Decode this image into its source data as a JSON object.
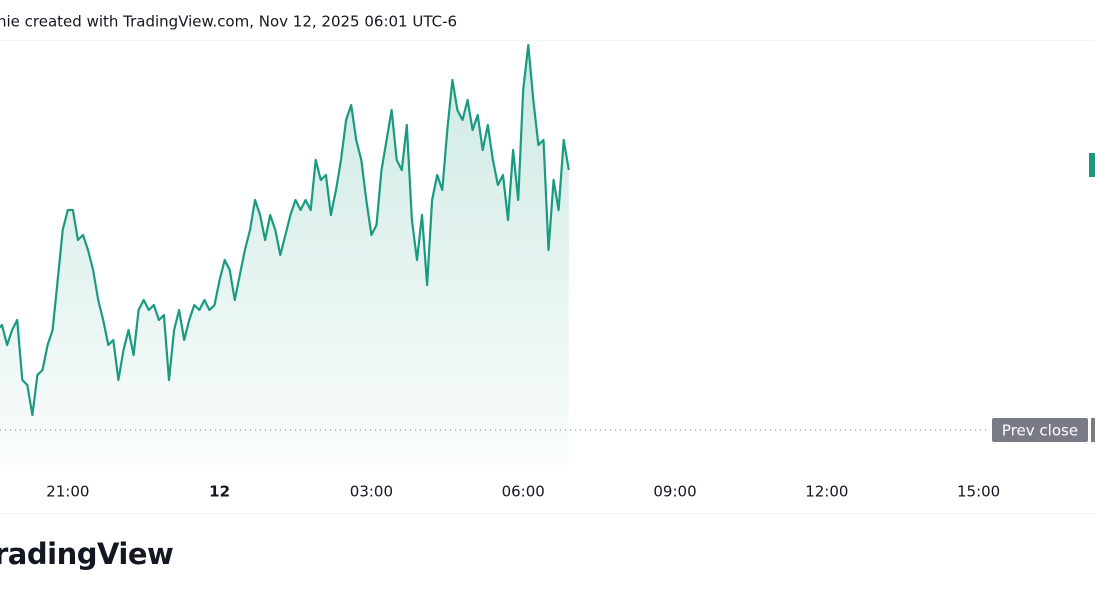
{
  "header": {
    "title": "nie created with TradingView.com, Nov 12, 2025 06:01 UTC-6"
  },
  "footer": {
    "logo": "radingView"
  },
  "chart_data": {
    "type": "area",
    "color": "#1a9a80",
    "x": [
      19.6,
      19.7,
      19.8,
      19.9,
      20.0,
      20.1,
      20.2,
      20.3,
      20.4,
      20.5,
      20.6,
      20.7,
      20.8,
      20.9,
      21.0,
      21.1,
      21.2,
      21.3,
      21.4,
      21.5,
      21.6,
      21.7,
      21.8,
      21.9,
      22.0,
      22.1,
      22.2,
      22.3,
      22.4,
      22.5,
      22.6,
      22.7,
      22.8,
      22.9,
      23.0,
      23.1,
      23.2,
      23.3,
      23.4,
      23.5,
      23.6,
      23.7,
      23.8,
      23.9,
      24.0,
      24.1,
      24.2,
      24.3,
      24.4,
      24.5,
      24.6,
      24.7,
      24.8,
      24.9,
      25.0,
      25.1,
      25.2,
      25.3,
      25.4,
      25.5,
      25.6,
      25.7,
      25.8,
      25.9,
      26.0,
      26.1,
      26.2,
      26.3,
      26.4,
      26.5,
      26.6,
      26.7,
      26.8,
      26.9,
      27.0,
      27.1,
      27.2,
      27.3,
      27.4,
      27.5,
      27.6,
      27.7,
      27.8,
      27.9,
      28.0,
      28.1,
      28.2,
      28.3,
      28.4,
      28.5,
      28.6,
      28.7,
      28.8,
      28.9,
      29.0,
      29.1,
      29.2,
      29.3,
      29.4,
      29.5,
      29.6,
      29.7,
      29.8,
      29.9,
      30.0,
      30.1,
      30.2,
      30.3,
      30.4,
      30.5,
      30.6,
      30.7,
      30.8,
      30.9
    ],
    "values": [
      135,
      140,
      120,
      135,
      145,
      85,
      80,
      50,
      90,
      95,
      120,
      135,
      185,
      235,
      255,
      255,
      225,
      230,
      215,
      195,
      165,
      145,
      120,
      125,
      85,
      115,
      135,
      110,
      155,
      165,
      155,
      160,
      145,
      150,
      85,
      135,
      155,
      125,
      145,
      160,
      155,
      165,
      155,
      160,
      185,
      205,
      195,
      165,
      190,
      215,
      235,
      265,
      250,
      225,
      250,
      235,
      210,
      230,
      250,
      265,
      255,
      265,
      255,
      305,
      285,
      290,
      250,
      275,
      305,
      345,
      360,
      325,
      305,
      265,
      230,
      240,
      295,
      325,
      355,
      305,
      295,
      340,
      245,
      205,
      250,
      180,
      265,
      290,
      275,
      335,
      385,
      355,
      345,
      365,
      335,
      350,
      315,
      340,
      305,
      280,
      290,
      245,
      315,
      265,
      375,
      420,
      365,
      320,
      325,
      215,
      285,
      255,
      325,
      295
    ],
    "xlim": [
      19.66,
      41.3
    ],
    "xticks": [
      {
        "value": 21,
        "label": "21:00"
      },
      {
        "value": 24,
        "label": "12"
      },
      {
        "value": 27,
        "label": "03:00"
      },
      {
        "value": 30,
        "label": "06:00"
      },
      {
        "value": 33,
        "label": "09:00"
      },
      {
        "value": 36,
        "label": "12:00"
      },
      {
        "value": 39,
        "label": "15:00"
      }
    ],
    "ylim": [
      0,
      425
    ],
    "prev_close": {
      "value": 35,
      "label": "Prev close"
    }
  }
}
